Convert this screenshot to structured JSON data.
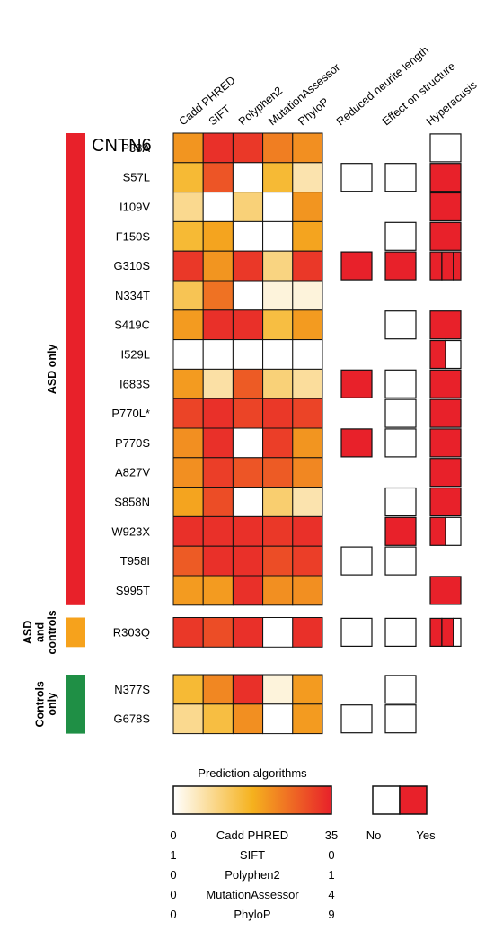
{
  "chart_data": {
    "type": "heatmap",
    "title": "CNTN6",
    "columns": [
      "Cadd PHRED",
      "SIFT",
      "Polyphen2",
      "MutationAssessor",
      "PhyloP"
    ],
    "annotation_columns": [
      "Reduced neurite length",
      "Effect on structure",
      "Hyperacusis"
    ],
    "groups": [
      {
        "label": "ASD only",
        "color": "#e8212a",
        "rows": [
          0,
          15
        ]
      },
      {
        "label": "ASD and controls",
        "color": "#f6a21c",
        "rows": [
          16,
          16
        ]
      },
      {
        "label": "Controls only",
        "color": "#1f8f45",
        "rows": [
          17,
          18
        ]
      }
    ],
    "rows": [
      {
        "variant": "P38A",
        "scores": [
          0.6,
          0.95,
          0.92,
          0.68,
          0.62
        ],
        "neurite": null,
        "structure": null,
        "hyperacusis": [
          0
        ]
      },
      {
        "variant": "S57L",
        "scores": [
          0.45,
          0.82,
          0.0,
          0.45,
          0.18
        ],
        "neurite": 0,
        "structure": 0,
        "hyperacusis": [
          1
        ]
      },
      {
        "variant": "I109V",
        "scores": [
          0.25,
          0.0,
          0.3,
          0.0,
          0.6
        ],
        "neurite": null,
        "structure": null,
        "hyperacusis": [
          1
        ]
      },
      {
        "variant": "F150S",
        "scores": [
          0.45,
          0.55,
          0.0,
          0.0,
          0.55
        ],
        "neurite": null,
        "structure": 0,
        "hyperacusis": [
          1
        ]
      },
      {
        "variant": "G310S",
        "scores": [
          0.92,
          0.6,
          0.92,
          0.28,
          0.92
        ],
        "neurite": 1,
        "structure": 1,
        "hyperacusis": [
          1,
          1,
          1
        ]
      },
      {
        "variant": "N334T",
        "scores": [
          0.38,
          0.72,
          0.0,
          0.08,
          0.08
        ],
        "neurite": null,
        "structure": null,
        "hyperacusis": null
      },
      {
        "variant": "S419C",
        "scores": [
          0.58,
          0.95,
          0.95,
          0.42,
          0.58
        ],
        "neurite": null,
        "structure": 0,
        "hyperacusis": [
          1
        ]
      },
      {
        "variant": "I529L",
        "scores": [
          0.0,
          0.0,
          0.0,
          0.0,
          0.0
        ],
        "neurite": null,
        "structure": null,
        "hyperacusis": [
          1,
          0
        ]
      },
      {
        "variant": "I683S",
        "scores": [
          0.58,
          0.2,
          0.8,
          0.3,
          0.22
        ],
        "neurite": 1,
        "structure": 0,
        "hyperacusis": [
          1
        ]
      },
      {
        "variant": "P770L*",
        "scores": [
          0.88,
          0.95,
          0.88,
          0.92,
          0.88
        ],
        "neurite": null,
        "structure": 0,
        "hyperacusis": [
          1
        ]
      },
      {
        "variant": "P770S",
        "scores": [
          0.62,
          0.95,
          0.0,
          0.9,
          0.6
        ],
        "neurite": 1,
        "structure": 0,
        "hyperacusis": [
          1
        ]
      },
      {
        "variant": "A827V",
        "scores": [
          0.62,
          0.9,
          0.82,
          0.8,
          0.65
        ],
        "neurite": null,
        "structure": null,
        "hyperacusis": [
          1
        ]
      },
      {
        "variant": "S858N",
        "scores": [
          0.55,
          0.85,
          0.0,
          0.32,
          0.18
        ],
        "neurite": null,
        "structure": 0,
        "hyperacusis": [
          1
        ]
      },
      {
        "variant": "W923X",
        "scores": [
          0.95,
          0.95,
          0.95,
          0.92,
          0.95
        ],
        "neurite": null,
        "structure": 1,
        "hyperacusis": [
          1,
          0
        ]
      },
      {
        "variant": "T958I",
        "scores": [
          0.8,
          0.95,
          0.95,
          0.85,
          0.9
        ],
        "neurite": 0,
        "structure": 0,
        "hyperacusis": null
      },
      {
        "variant": "S995T",
        "scores": [
          0.58,
          0.58,
          0.95,
          0.62,
          0.62
        ],
        "neurite": null,
        "structure": null,
        "hyperacusis": [
          1
        ]
      },
      {
        "variant": "R303Q",
        "scores": [
          0.92,
          0.85,
          0.95,
          0.0,
          0.95
        ],
        "neurite": 0,
        "structure": 0,
        "hyperacusis": [
          1,
          1,
          0
        ]
      },
      {
        "variant": "N377S",
        "scores": [
          0.45,
          0.65,
          0.95,
          0.08,
          0.58
        ],
        "neurite": null,
        "structure": 0,
        "hyperacusis": null
      },
      {
        "variant": "G678S",
        "scores": [
          0.25,
          0.42,
          0.62,
          0.0,
          0.58
        ],
        "neurite": 0,
        "structure": 0,
        "hyperacusis": null
      }
    ],
    "legend": {
      "scale_title": "Prediction algorithms",
      "scale_rows": [
        {
          "left": "0",
          "name": "Cadd PHRED",
          "right": "35"
        },
        {
          "left": "1",
          "name": "SIFT",
          "right": "0"
        },
        {
          "left": "0",
          "name": "Polyphen2",
          "right": "1"
        },
        {
          "left": "0",
          "name": "MutationAssessor",
          "right": "4"
        },
        {
          "left": "0",
          "name": "PhyloP",
          "right": "9"
        }
      ],
      "binary_no": "No",
      "binary_yes": "Yes"
    },
    "colors": {
      "low": "#ffffff",
      "mid": "#f5b21e",
      "high": "#e8212a",
      "yes": "#e8212a",
      "no": "#ffffff",
      "border": "#111111"
    }
  }
}
